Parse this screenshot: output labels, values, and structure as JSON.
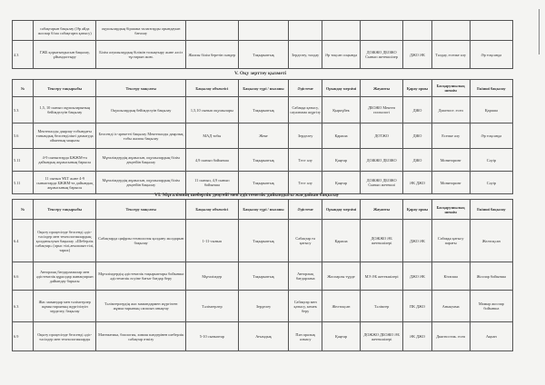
{
  "headers": [
    "№",
    "Тексеру тақырыбы",
    "Тексеру мақсаты",
    "Бақылау объектісі",
    "Бақылау түрі / нысаны",
    "Әдістеме",
    "Орындау мерзімі",
    "Жауапты",
    "Қарау орны",
    "Басқарушылық шешім",
    "Екінші бақылау"
  ],
  "table1": [
    [
      "",
      "сабақтарын бақылау (Әр айда жоспар б/ша сабақтарға қатысу)",
      "оқушылардың біршама талаптарды орындауын бағалау",
      "",
      "",
      "",
      "",
      "",
      "",
      "",
      ""
    ],
    [
      "4.3",
      "ГЖБ қорытындысын бақылау, ұйымдастыру",
      "Білім алушылардың білімін толықтыру және әлсіз тұстарын жою.",
      "Жалпы білім беретін пәндер",
      "Тақырыптық",
      "Зерделеу, талдау",
      "Әр тоқсан соңында",
      "ДОЖЖО ДБОЖО Сынып жетекшілер",
      "ДЖО ӘК",
      "Талдау, есепке алу",
      "Әр тоқсанда"
    ]
  ],
  "section5": "V. Оқу зерттеу қызметі",
  "table2": [
    [
      "5.3",
      "1,5, 10 сынып оқушыларының бейімделуін бақылау",
      "Оқушылардың бейімделуін бақылау",
      "1,5,10 сынып оқушылары",
      "Тақырыптық",
      "Сабаққа қатысу, сауалнама жүргізу",
      "Қыркүйек",
      "ДБОЖО Мектеп психологі",
      "ДЖО",
      "Диагност. есеп",
      "Қараша"
    ],
    [
      "5.6",
      "Мектепалды даярлау тобындағы танымдық белсенділікті дамытуда ойынның маңызы",
      "Белсенді іс-әрекетті бақылау Мектепалды даярлық тобы жалпы бақылау",
      "МАД тобы",
      "Жеке",
      "Зерделеу",
      "Қараша",
      "ДОТЖО",
      "ДЖО",
      "Есепке алу",
      "Әр тоқсанда"
    ],
    [
      "5.11",
      "4-9 сыныптарда БЖЖМ-ға дайындық жұмысының барысы",
      "Мұғалімдердің жұмысын, оқушылардың білім деңгейін бақылау",
      "4,9 сынып бойынша",
      "Тақырыптық",
      "Тест алу",
      "Қаңтар",
      "ДОЖЖО ДБОЖО",
      "ДЖО",
      "Мониторинг",
      "Сәуір"
    ],
    [
      "5.11",
      "11 сынып ҰБТ және 4-9 сыныптарда БЖЖМ-ға дайындық жұмысының барысы",
      "Мұғалімдердің жұмысын, оқушылардың білім деңгейін бақылау",
      "11 сынып, 4,9 сынып бойынша",
      "Тақырыптық",
      "Тест алу",
      "Қаңтар",
      "ДОЖЖО ДБОЖО Сынып жетекші",
      "ӘК ДЖО",
      "Мониторинг",
      "Сәуір"
    ]
  ],
  "section6": "VI. Мұғалімнің шеберлік деңгейі мен әдістемелік дайындығы жағдайын бақылау",
  "table3": [
    [
      "6.4",
      "Оқыту процесінде белсенді әдіс-тәсілдер мен технологиялардың қолданылуын бақылау. «Шеберлік сабақтар» (орыс тілі,ағылшын тілі, тарих)",
      "Сабақтарда цифрлы технология қолдану жолдарын бақылау",
      "1-11-сынып",
      "Тақырыптық",
      "Сабақтар ға қатысу",
      "Қараша",
      "ДОЖЖО ӘБ жетекшілері",
      "ДЖО ӘК",
      "Сабаққа қатысу парағы",
      "Желтоқсан"
    ],
    [
      "6.6",
      "Авторлық бағдарламалар мен әдістемелік құралдар жинақтарын дайындау барысы",
      "Мұғалімдердің әдістемелік тақырыптары бойынша әдістемелік өсуіне бағыт бағдар беру",
      "Мұғалімдер",
      "Тақырыптық",
      "Авторлық бағдарлама",
      "Жоспарлы түрде",
      "МЭ ӘБ жетекшілері",
      "ДЖО ӘК",
      "Кітапша",
      "Жоспар бойынша"
    ],
    [
      "6.3",
      "Жас мамандар мен тәлімгерлер жұмыстарының жүргізілуін зерделеу, бақылау",
      "Тәлімгерлердің жас мамандармен жүргізген жұмыстарының сапасын анықтау",
      "Тәлімгерлер",
      "Зерделеу",
      "Сабақтар мен қатысу, көмек беру",
      "Желтоқсан",
      "Тәлімгер",
      "ПК ДЖО",
      "Анықтама",
      "Мамыр жоспар бойынша"
    ],
    [
      "6.9",
      "Оқыту процесінде белсенді әдіс-тәсілдер мен технологияларды",
      "Математика, биология, химия пәндерінен шеберлік сабақтар өткізу",
      "5-10 сыныптар",
      "Ағымдық",
      "Пән аралық алмасу",
      "Қаңтар",
      "ДОЖЖО ДБОЖО ӘБ жетекшілері",
      "ӘК ДЖО",
      "Диагностик. есеп",
      "Ақпан"
    ]
  ]
}
